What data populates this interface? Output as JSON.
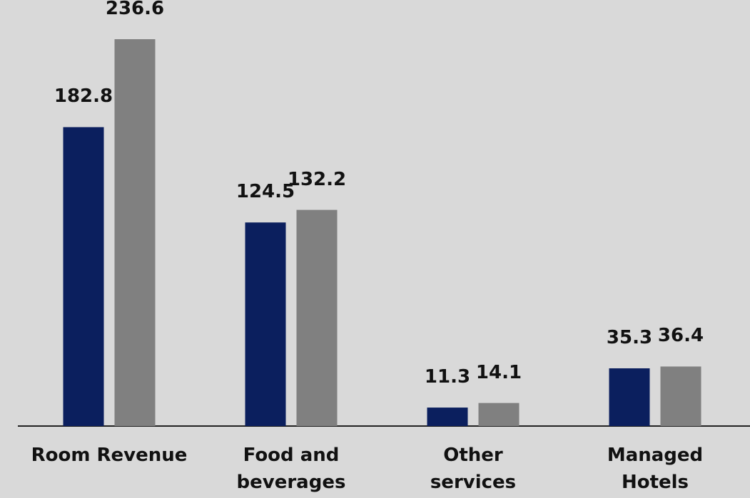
{
  "chart_data": {
    "type": "bar",
    "categories": [
      "Room Revenue",
      "Food and\nbeverages",
      "Other\nservices",
      "Managed\nHotels"
    ],
    "series": [
      {
        "color": "#0b1f5e",
        "values": [
          182.8,
          124.5,
          11.3,
          35.3
        ]
      },
      {
        "color": "#808080",
        "values": [
          236.6,
          132.2,
          14.1,
          36.4
        ]
      }
    ]
  }
}
